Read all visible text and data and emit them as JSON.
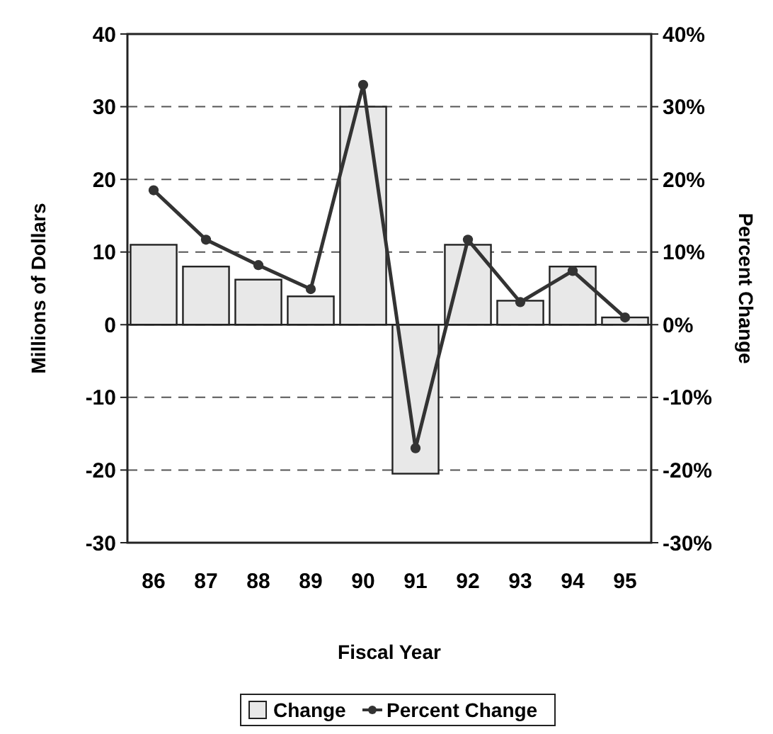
{
  "chart_data": {
    "type": "bar",
    "xlabel": "Fiscal Year",
    "ylabel": "Millions of Dollars",
    "y2label": "Percent Change",
    "categories": [
      "86",
      "87",
      "88",
      "89",
      "90",
      "91",
      "92",
      "93",
      "94",
      "95"
    ],
    "series": [
      {
        "name": "Change",
        "color": "#e8e8e8",
        "values": [
          11,
          8,
          6.2,
          3.9,
          30,
          -20.5,
          11,
          3.3,
          8,
          1
        ]
      },
      {
        "name": "Percent Change",
        "type": "line",
        "axis": "y2",
        "color": "#333333",
        "values": [
          18.5,
          11.7,
          8.2,
          4.9,
          33,
          -17,
          11.7,
          3.1,
          7.4,
          1
        ]
      }
    ],
    "ylim": [
      -30,
      40
    ],
    "yticks": [
      -30,
      -20,
      -10,
      0,
      10,
      20,
      30,
      40
    ],
    "y2lim": [
      -30,
      40
    ],
    "y2ticks": [
      {
        "value": -30,
        "label": "-30%"
      },
      {
        "value": -20,
        "label": "-20%"
      },
      {
        "value": -10,
        "label": "-10%"
      },
      {
        "value": 0,
        "label": "0%"
      },
      {
        "value": 10,
        "label": "10%"
      },
      {
        "value": 20,
        "label": "20%"
      },
      {
        "value": 30,
        "label": "30%"
      },
      {
        "value": 40,
        "label": "40%"
      }
    ],
    "grid": "y",
    "legend": "bottom",
    "marker": "circle",
    "line_style": "solid"
  }
}
